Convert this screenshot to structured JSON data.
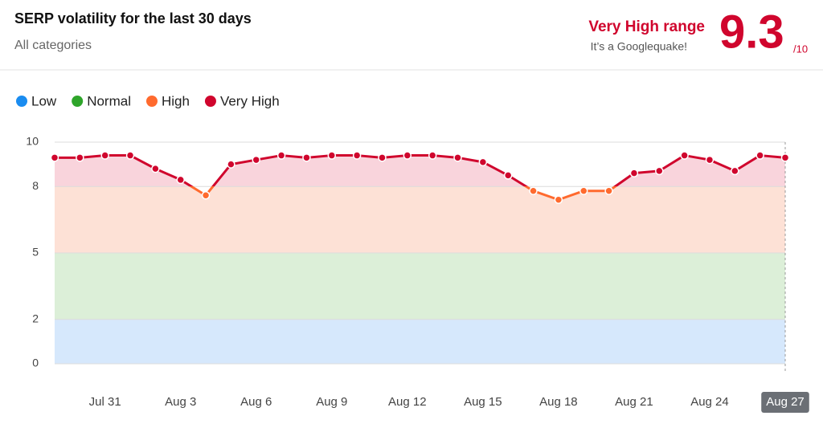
{
  "chart_data": {
    "type": "line",
    "title": "SERP volatility for the last 30 days",
    "subtitle": "All categories",
    "status_label": "Very High range",
    "status_note": "It’s a Googlequake!",
    "score": 9.3,
    "score_suffix": "/10",
    "categories": [
      null,
      null,
      "Jul 31",
      null,
      null,
      "Aug 3",
      null,
      null,
      "Aug 6",
      null,
      null,
      "Aug 9",
      null,
      null,
      "Aug 12",
      null,
      null,
      "Aug 15",
      null,
      null,
      "Aug 18",
      null,
      null,
      "Aug 21",
      null,
      null,
      "Aug 24",
      null,
      null,
      "Aug 27"
    ],
    "values": [
      9.3,
      9.3,
      9.4,
      9.4,
      8.8,
      8.3,
      7.6,
      9.0,
      9.2,
      9.4,
      9.3,
      9.4,
      9.4,
      9.3,
      9.4,
      9.4,
      9.3,
      9.1,
      8.5,
      7.8,
      7.4,
      7.8,
      7.8,
      8.6,
      8.7,
      9.4,
      9.2,
      8.7,
      9.4,
      9.3
    ],
    "bands": [
      {
        "name": "Low",
        "color": "#1a8cf0",
        "fill": "#d6e8fc",
        "range": [
          0,
          2
        ]
      },
      {
        "name": "Normal",
        "color": "#2ea52a",
        "fill": "#dcefd8",
        "range": [
          2,
          5
        ]
      },
      {
        "name": "High",
        "color": "#ff6a2e",
        "fill": "#fde1d6",
        "range": [
          5,
          8
        ]
      },
      {
        "name": "Very High",
        "color": "#d0052d",
        "fill": "#f9d4dc",
        "range": [
          8,
          10
        ]
      }
    ],
    "ylim": [
      0,
      10
    ],
    "yticks": [
      0,
      2,
      5,
      8,
      10
    ],
    "grid": true
  }
}
